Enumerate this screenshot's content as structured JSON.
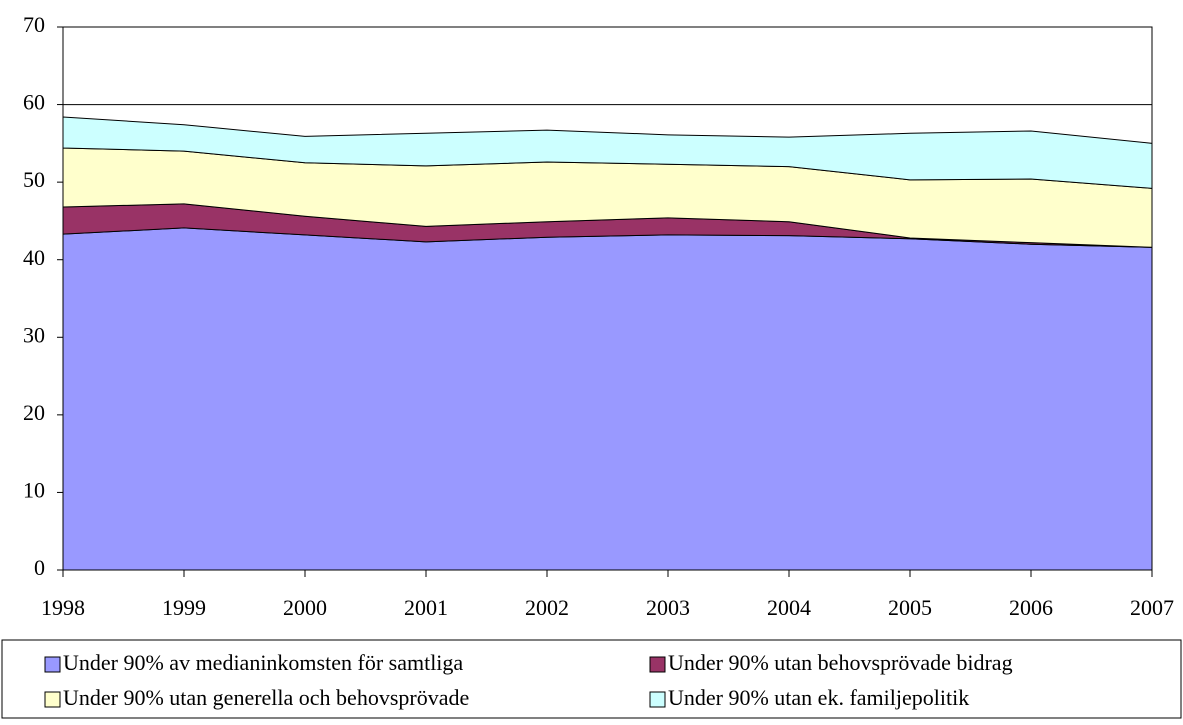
{
  "chart_data": {
    "type": "stacked_area",
    "categories": [
      "1998",
      "1999",
      "2000",
      "2001",
      "2002",
      "2003",
      "2004",
      "2005",
      "2006",
      "2007"
    ],
    "series": [
      {
        "name": "Under 90% av medianinkomsten för samtliga",
        "color": "#9999ff",
        "values": [
          43.3,
          44.1,
          43.2,
          42.3,
          42.9,
          43.2,
          43.1,
          42.7,
          42.0,
          41.6
        ]
      },
      {
        "name": "Under 90% utan behovsprövade bidrag",
        "color": "#993366",
        "values": [
          3.5,
          3.1,
          2.4,
          2.0,
          2.0,
          2.2,
          1.8,
          0.1,
          0.2,
          0.0
        ]
      },
      {
        "name": "Under 90% utan generella och behovsprövade",
        "color": "#ffffcc",
        "values": [
          7.6,
          6.8,
          6.9,
          7.8,
          7.7,
          6.9,
          7.1,
          7.5,
          8.2,
          7.6
        ]
      },
      {
        "name": "Under 90% utan ek. familjepolitik",
        "color": "#ccffff",
        "values": [
          4.0,
          3.4,
          3.4,
          4.2,
          4.1,
          3.8,
          3.8,
          6.0,
          6.2,
          5.8
        ]
      }
    ],
    "ylim": [
      0,
      70
    ],
    "yticks": [
      0,
      10,
      20,
      30,
      40,
      50,
      60,
      70
    ],
    "grid": true
  }
}
